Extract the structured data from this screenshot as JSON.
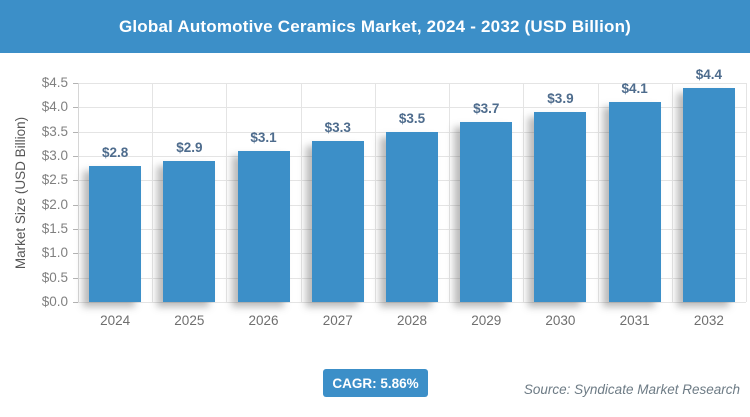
{
  "header": {
    "bg": "#3c8fc8",
    "text_color": "#ffffff"
  },
  "chart_data": {
    "type": "bar",
    "title": "Global Automotive Ceramics Market, 2024 - 2032 (USD Billion)",
    "categories": [
      "2024",
      "2025",
      "2026",
      "2027",
      "2028",
      "2029",
      "2030",
      "2031",
      "2032"
    ],
    "values": [
      2.8,
      2.9,
      3.1,
      3.3,
      3.5,
      3.7,
      3.9,
      4.1,
      4.4
    ],
    "value_labels": [
      "$2.8",
      "$2.9",
      "$3.1",
      "$3.3",
      "$3.5",
      "$3.7",
      "$3.9",
      "$4.1",
      "$4.4"
    ],
    "xlabel": "",
    "ylabel": "Market Size (USD Billion)",
    "ylim": [
      0,
      4.5
    ],
    "ytick_step": 0.5,
    "ytick_labels": [
      "$0.0",
      "$0.5",
      "$1.0",
      "$1.5",
      "$2.0",
      "$2.5",
      "$3.0",
      "$3.5",
      "$4.0",
      "$4.5"
    ],
    "grid": true,
    "legend": "none",
    "bar_color": "#3c8fc8",
    "value_label_color": "#4e6c8d",
    "grid_color": "#e4e4e4"
  },
  "footer": {
    "cagr_label": "CAGR: 5.86%",
    "cagr_bg": "#3c8fc8",
    "source": "Source: Syndicate Market Research"
  }
}
